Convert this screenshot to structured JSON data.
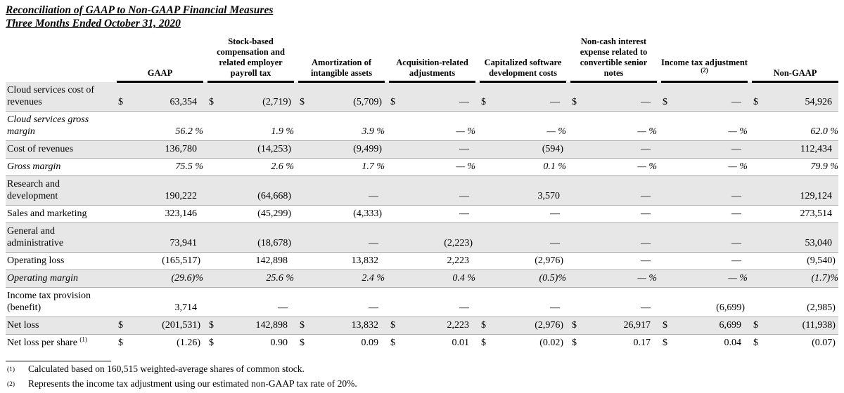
{
  "title": {
    "line1": "Reconciliation of GAAP to Non-GAAP Financial Measures",
    "line2": "Three Months Ended October 31, 2020"
  },
  "table": {
    "columns": [
      {
        "label": "GAAP"
      },
      {
        "label": "Stock-based compensation and related employer payroll tax"
      },
      {
        "label": "Amortization of intangible assets"
      },
      {
        "label": "Acquisition-related adjustments"
      },
      {
        "label": "Capitalized software development costs"
      },
      {
        "label": "Non-cash interest expense related to convertible senior notes"
      },
      {
        "label": "Income tax adjustment",
        "sup": "(2)"
      },
      {
        "label": "Non-GAAP"
      }
    ],
    "rows": [
      {
        "label": "Cloud services cost of revenues",
        "shaded": true,
        "italic": false,
        "cells": [
          [
            "$",
            "63,354"
          ],
          [
            "$",
            "(2,719)"
          ],
          [
            "$",
            "(5,709)"
          ],
          [
            "$",
            "—"
          ],
          [
            "$",
            "—"
          ],
          [
            "$",
            "—"
          ],
          [
            "$",
            "—"
          ],
          [
            "$",
            "54,926"
          ]
        ]
      },
      {
        "label": "Cloud services gross margin",
        "shaded": false,
        "italic": true,
        "cells": [
          [
            "",
            "56.2 %"
          ],
          [
            "",
            "1.9 %"
          ],
          [
            "",
            "3.9 %"
          ],
          [
            "",
            "— %"
          ],
          [
            "",
            "— %"
          ],
          [
            "",
            "— %"
          ],
          [
            "",
            "— %"
          ],
          [
            "",
            "62.0 %"
          ]
        ]
      },
      {
        "label": "Cost of revenues",
        "shaded": true,
        "italic": false,
        "cells": [
          [
            "",
            "136,780"
          ],
          [
            "",
            "(14,253)"
          ],
          [
            "",
            "(9,499)"
          ],
          [
            "",
            "—"
          ],
          [
            "",
            "(594)"
          ],
          [
            "",
            "—"
          ],
          [
            "",
            "—"
          ],
          [
            "",
            "112,434"
          ]
        ]
      },
      {
        "label": "Gross margin",
        "shaded": false,
        "italic": true,
        "cells": [
          [
            "",
            "75.5 %"
          ],
          [
            "",
            "2.6 %"
          ],
          [
            "",
            "1.7 %"
          ],
          [
            "",
            "— %"
          ],
          [
            "",
            "0.1 %"
          ],
          [
            "",
            "— %"
          ],
          [
            "",
            "— %"
          ],
          [
            "",
            "79.9 %"
          ]
        ]
      },
      {
        "label": "Research and development",
        "shaded": true,
        "italic": false,
        "cells": [
          [
            "",
            "190,222"
          ],
          [
            "",
            "(64,668)"
          ],
          [
            "",
            "—"
          ],
          [
            "",
            "—"
          ],
          [
            "",
            "3,570"
          ],
          [
            "",
            "—"
          ],
          [
            "",
            "—"
          ],
          [
            "",
            "129,124"
          ]
        ]
      },
      {
        "label": "Sales and marketing",
        "shaded": false,
        "italic": false,
        "cells": [
          [
            "",
            "323,146"
          ],
          [
            "",
            "(45,299)"
          ],
          [
            "",
            "(4,333)"
          ],
          [
            "",
            "—"
          ],
          [
            "",
            "—"
          ],
          [
            "",
            "—"
          ],
          [
            "",
            "—"
          ],
          [
            "",
            "273,514"
          ]
        ]
      },
      {
        "label": "General and administrative",
        "shaded": true,
        "italic": false,
        "cells": [
          [
            "",
            "73,941"
          ],
          [
            "",
            "(18,678)"
          ],
          [
            "",
            "—"
          ],
          [
            "",
            "(2,223)"
          ],
          [
            "",
            "—"
          ],
          [
            "",
            "—"
          ],
          [
            "",
            "—"
          ],
          [
            "",
            "53,040"
          ]
        ]
      },
      {
        "label": "Operating loss",
        "shaded": false,
        "italic": false,
        "cells": [
          [
            "",
            "(165,517)"
          ],
          [
            "",
            "142,898"
          ],
          [
            "",
            "13,832"
          ],
          [
            "",
            "2,223"
          ],
          [
            "",
            "(2,976)"
          ],
          [
            "",
            "—"
          ],
          [
            "",
            "—"
          ],
          [
            "",
            "(9,540)"
          ]
        ]
      },
      {
        "label": "Operating margin",
        "shaded": true,
        "italic": true,
        "cells": [
          [
            "",
            "(29.6)%"
          ],
          [
            "",
            "25.6 %"
          ],
          [
            "",
            "2.4 %"
          ],
          [
            "",
            "0.4 %"
          ],
          [
            "",
            "(0.5)%"
          ],
          [
            "",
            "— %"
          ],
          [
            "",
            "— %"
          ],
          [
            "",
            "(1.7)%"
          ]
        ]
      },
      {
        "label": "Income tax provision (benefit)",
        "shaded": false,
        "italic": false,
        "cells": [
          [
            "",
            "3,714"
          ],
          [
            "",
            "—"
          ],
          [
            "",
            "—"
          ],
          [
            "",
            "—"
          ],
          [
            "",
            "—"
          ],
          [
            "",
            "—"
          ],
          [
            "",
            "(6,699)"
          ],
          [
            "",
            "(2,985)"
          ]
        ]
      },
      {
        "label": "Net loss",
        "shaded": true,
        "italic": false,
        "cells": [
          [
            "$",
            "(201,531)"
          ],
          [
            "$",
            "142,898"
          ],
          [
            "$",
            "13,832"
          ],
          [
            "$",
            "2,223"
          ],
          [
            "$",
            "(2,976)"
          ],
          [
            "$",
            "26,917"
          ],
          [
            "$",
            "6,699"
          ],
          [
            "$",
            "(11,938)"
          ]
        ]
      },
      {
        "label": "Net loss per share",
        "sup": "(1)",
        "shaded": false,
        "italic": false,
        "cells": [
          [
            "$",
            "(1.26)"
          ],
          [
            "$",
            "0.90"
          ],
          [
            "$",
            "0.09"
          ],
          [
            "$",
            "0.01"
          ],
          [
            "$",
            "(0.02)"
          ],
          [
            "$",
            "0.17"
          ],
          [
            "$",
            "0.04"
          ],
          [
            "$",
            "(0.07)"
          ]
        ]
      }
    ]
  },
  "footnotes": [
    {
      "marker": "(1)",
      "text": "Calculated based on 160,515 weighted-average shares of common stock."
    },
    {
      "marker": "(2)",
      "text": "Represents the income tax adjustment using our estimated non-GAAP tax rate of 20%."
    }
  ]
}
